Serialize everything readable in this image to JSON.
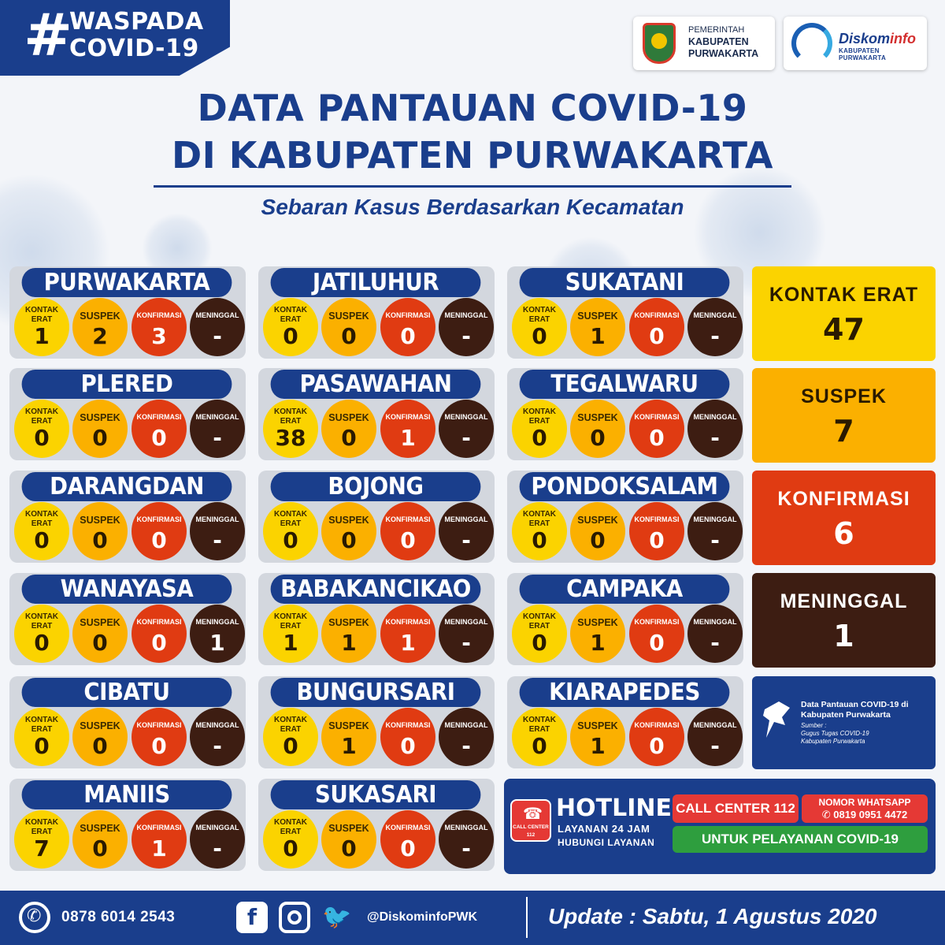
{
  "badge": {
    "hash": "#",
    "line1": "WASPADA",
    "line2": "COVID-19"
  },
  "logos": {
    "pemkab": {
      "line1": "PEMERINTAH",
      "line2": "KABUPATEN",
      "line3": "PURWAKARTA"
    },
    "diskominfo": {
      "name_a": "Diskom",
      "name_b": "info",
      "sub": "KABUPATEN PURWAKARTA"
    }
  },
  "title": {
    "line1": "DATA PANTAUAN COVID-19",
    "line2": "DI KABUPATEN PURWAKARTA"
  },
  "subtitle": "Sebaran Kasus Berdasarkan Kecamatan",
  "labels": {
    "kontak_erat_1": "KONTAK",
    "kontak_erat_2": "ERAT",
    "suspek": "SUSPEK",
    "konfirmasi": "KONFIRMASI",
    "meninggal": "MENINGGAL"
  },
  "districts": [
    {
      "name": "PURWAKARTA",
      "kontak_erat": "1",
      "suspek": "2",
      "konfirmasi": "3",
      "meninggal": "-"
    },
    {
      "name": "JATILUHUR",
      "kontak_erat": "0",
      "suspek": "0",
      "konfirmasi": "0",
      "meninggal": "-"
    },
    {
      "name": "SUKATANI",
      "kontak_erat": "0",
      "suspek": "1",
      "konfirmasi": "0",
      "meninggal": "-"
    },
    {
      "name": "PLERED",
      "kontak_erat": "0",
      "suspek": "0",
      "konfirmasi": "0",
      "meninggal": "-"
    },
    {
      "name": "PASAWAHAN",
      "kontak_erat": "38",
      "suspek": "0",
      "konfirmasi": "1",
      "meninggal": "-"
    },
    {
      "name": "TEGALWARU",
      "kontak_erat": "0",
      "suspek": "0",
      "konfirmasi": "0",
      "meninggal": "-"
    },
    {
      "name": "DARANGDAN",
      "kontak_erat": "0",
      "suspek": "0",
      "konfirmasi": "0",
      "meninggal": "-"
    },
    {
      "name": "BOJONG",
      "kontak_erat": "0",
      "suspek": "0",
      "konfirmasi": "0",
      "meninggal": "-"
    },
    {
      "name": "PONDOKSALAM",
      "kontak_erat": "0",
      "suspek": "0",
      "konfirmasi": "0",
      "meninggal": "-"
    },
    {
      "name": "WANAYASA",
      "kontak_erat": "0",
      "suspek": "0",
      "konfirmasi": "0",
      "meninggal": "1"
    },
    {
      "name": "BABAKANCIKAO",
      "kontak_erat": "1",
      "suspek": "1",
      "konfirmasi": "1",
      "meninggal": "-"
    },
    {
      "name": "CAMPAKA",
      "kontak_erat": "0",
      "suspek": "1",
      "konfirmasi": "0",
      "meninggal": "-"
    },
    {
      "name": "CIBATU",
      "kontak_erat": "0",
      "suspek": "0",
      "konfirmasi": "0",
      "meninggal": "-"
    },
    {
      "name": "BUNGURSARI",
      "kontak_erat": "0",
      "suspek": "1",
      "konfirmasi": "0",
      "meninggal": "-"
    },
    {
      "name": "KIARAPEDES",
      "kontak_erat": "0",
      "suspek": "1",
      "konfirmasi": "0",
      "meninggal": "-"
    },
    {
      "name": "MANIIS",
      "kontak_erat": "7",
      "suspek": "0",
      "konfirmasi": "1",
      "meninggal": "-"
    },
    {
      "name": "SUKASARI",
      "kontak_erat": "0",
      "suspek": "0",
      "konfirmasi": "0",
      "meninggal": "-"
    }
  ],
  "summary": {
    "kontak_erat": {
      "label": "KONTAK ERAT",
      "value": "47"
    },
    "suspek": {
      "label": "SUSPEK",
      "value": "7"
    },
    "konfirmasi": {
      "label": "KONFIRMASI",
      "value": "6"
    },
    "meninggal": {
      "label": "MENINGGAL",
      "value": "1"
    }
  },
  "source": {
    "title": "Data Pantauan COVID-19 di Kabupaten Purwakarta",
    "sumber_label": "Sumber :",
    "sumber_1": "Gugus Tugas COVID-19",
    "sumber_2": "Kabupaten Purwakarta"
  },
  "hotline": {
    "icon_line1": "CALL CENTER",
    "icon_line2": "112",
    "title": "HOTLINE",
    "sub1": "LAYANAN 24 JAM",
    "sub2": "HUBUNGI LAYANAN",
    "call_center": "CALL CENTER 112",
    "wa_label": "NOMOR WHATSAPP",
    "wa_number": "0819 0951 4472",
    "service": "UNTUK PELAYANAN COVID-19"
  },
  "footer": {
    "phone": "0878 6014 2543",
    "handle": "@DiskominfoPWK",
    "update": "Update : Sabtu, 1 Agustus 2020"
  },
  "colors": {
    "navy": "#1a3e8c",
    "kontak_erat": "#fbd300",
    "suspek": "#fbb000",
    "konfirmasi": "#e03b12",
    "meninggal": "#3d1d12",
    "whatsapp_green": "#2e9e3e",
    "call_red": "#e53935"
  },
  "icons": [
    "whatsapp-icon",
    "facebook-icon",
    "instagram-icon",
    "twitter-icon",
    "location-pin-icon",
    "phone-icon",
    "emergency-phone-icon"
  ]
}
